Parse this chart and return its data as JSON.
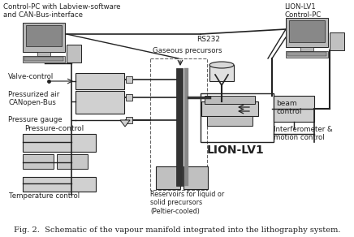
{
  "fig_width": 4.36,
  "fig_height": 2.92,
  "dpi": 100,
  "bg_color": "#ffffff",
  "caption": "Fig. 2.  Schematic of the vapour manifold integrated into the lithography system.",
  "caption_fontsize": 7.0,
  "labels": {
    "control_pc_left": "Control-PC with Labview-software\nand CAN-Bus-interface",
    "lion_lv1_label": "LION-LV1",
    "rs232": "RS232",
    "gaseous": "Gaseous precursors",
    "valve_control": "Valve-control",
    "pressurized": "Pressurized air\nCANopen-Bus",
    "pressure_gauge": "Pressure gauge",
    "pressure_control": "Pressure-control",
    "temp_control": "Temperature control",
    "reservoirs": "Reservoirs for liquid or\nsolid precursors\n(Peltier-cooled)",
    "beam_control": "beam\ncontrol",
    "lion_lv1_control": "LION-LV1\nControl-PC",
    "interferometer": "Interferometer &\nmotion control"
  },
  "colors": {
    "main": "#222222",
    "box_light": "#c8c8c8",
    "box_mid": "#aaaaaa",
    "dashed": "#666666",
    "white": "#ffffff"
  }
}
